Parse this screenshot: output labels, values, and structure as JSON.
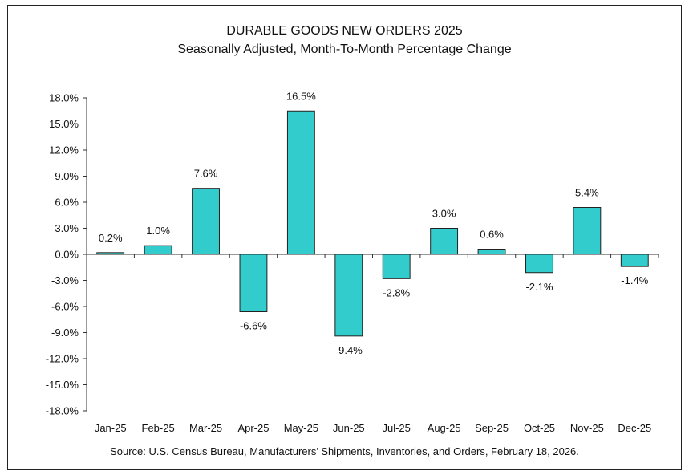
{
  "chart_data": {
    "type": "bar",
    "title": "DURABLE GOODS NEW ORDERS 2025",
    "subtitle": "Seasonally Adjusted,  Month-To-Month Percentage Change",
    "categories": [
      "Jan-25",
      "Feb-25",
      "Mar-25",
      "Apr-25",
      "May-25",
      "Jun-25",
      "Jul-25",
      "Aug-25",
      "Sep-25",
      "Oct-25",
      "Nov-25",
      "Dec-25"
    ],
    "values": [
      0.2,
      1.0,
      7.6,
      -6.6,
      16.5,
      -9.4,
      -2.8,
      3.0,
      0.6,
      -2.1,
      5.4,
      -1.4
    ],
    "data_labels": [
      "0.2%",
      "1.0%",
      "7.6%",
      "-6.6%",
      "16.5%",
      "-9.4%",
      "-2.8%",
      "3.0%",
      "0.6%",
      "-2.1%",
      "5.4%",
      "-1.4%"
    ],
    "ylim": [
      -18,
      18
    ],
    "yticks": [
      18,
      15,
      12,
      9,
      6,
      3,
      0,
      -3,
      -6,
      -9,
      -12,
      -15,
      -18
    ],
    "ytick_labels": [
      "18.0%",
      "15.0%",
      "12.0%",
      "9.0%",
      "6.0%",
      "3.0%",
      "0.0%",
      "-3.0%",
      "-6.0%",
      "-9.0%",
      "-12.0%",
      "-15.0%",
      "-18.0%"
    ],
    "xlabel": "",
    "ylabel": "",
    "grid": false,
    "bar_color": "#33CCCC",
    "source": "Source: U.S. Census Bureau, Manufacturers’ Shipments, Inventories, and Orders, February 18, 2026."
  }
}
